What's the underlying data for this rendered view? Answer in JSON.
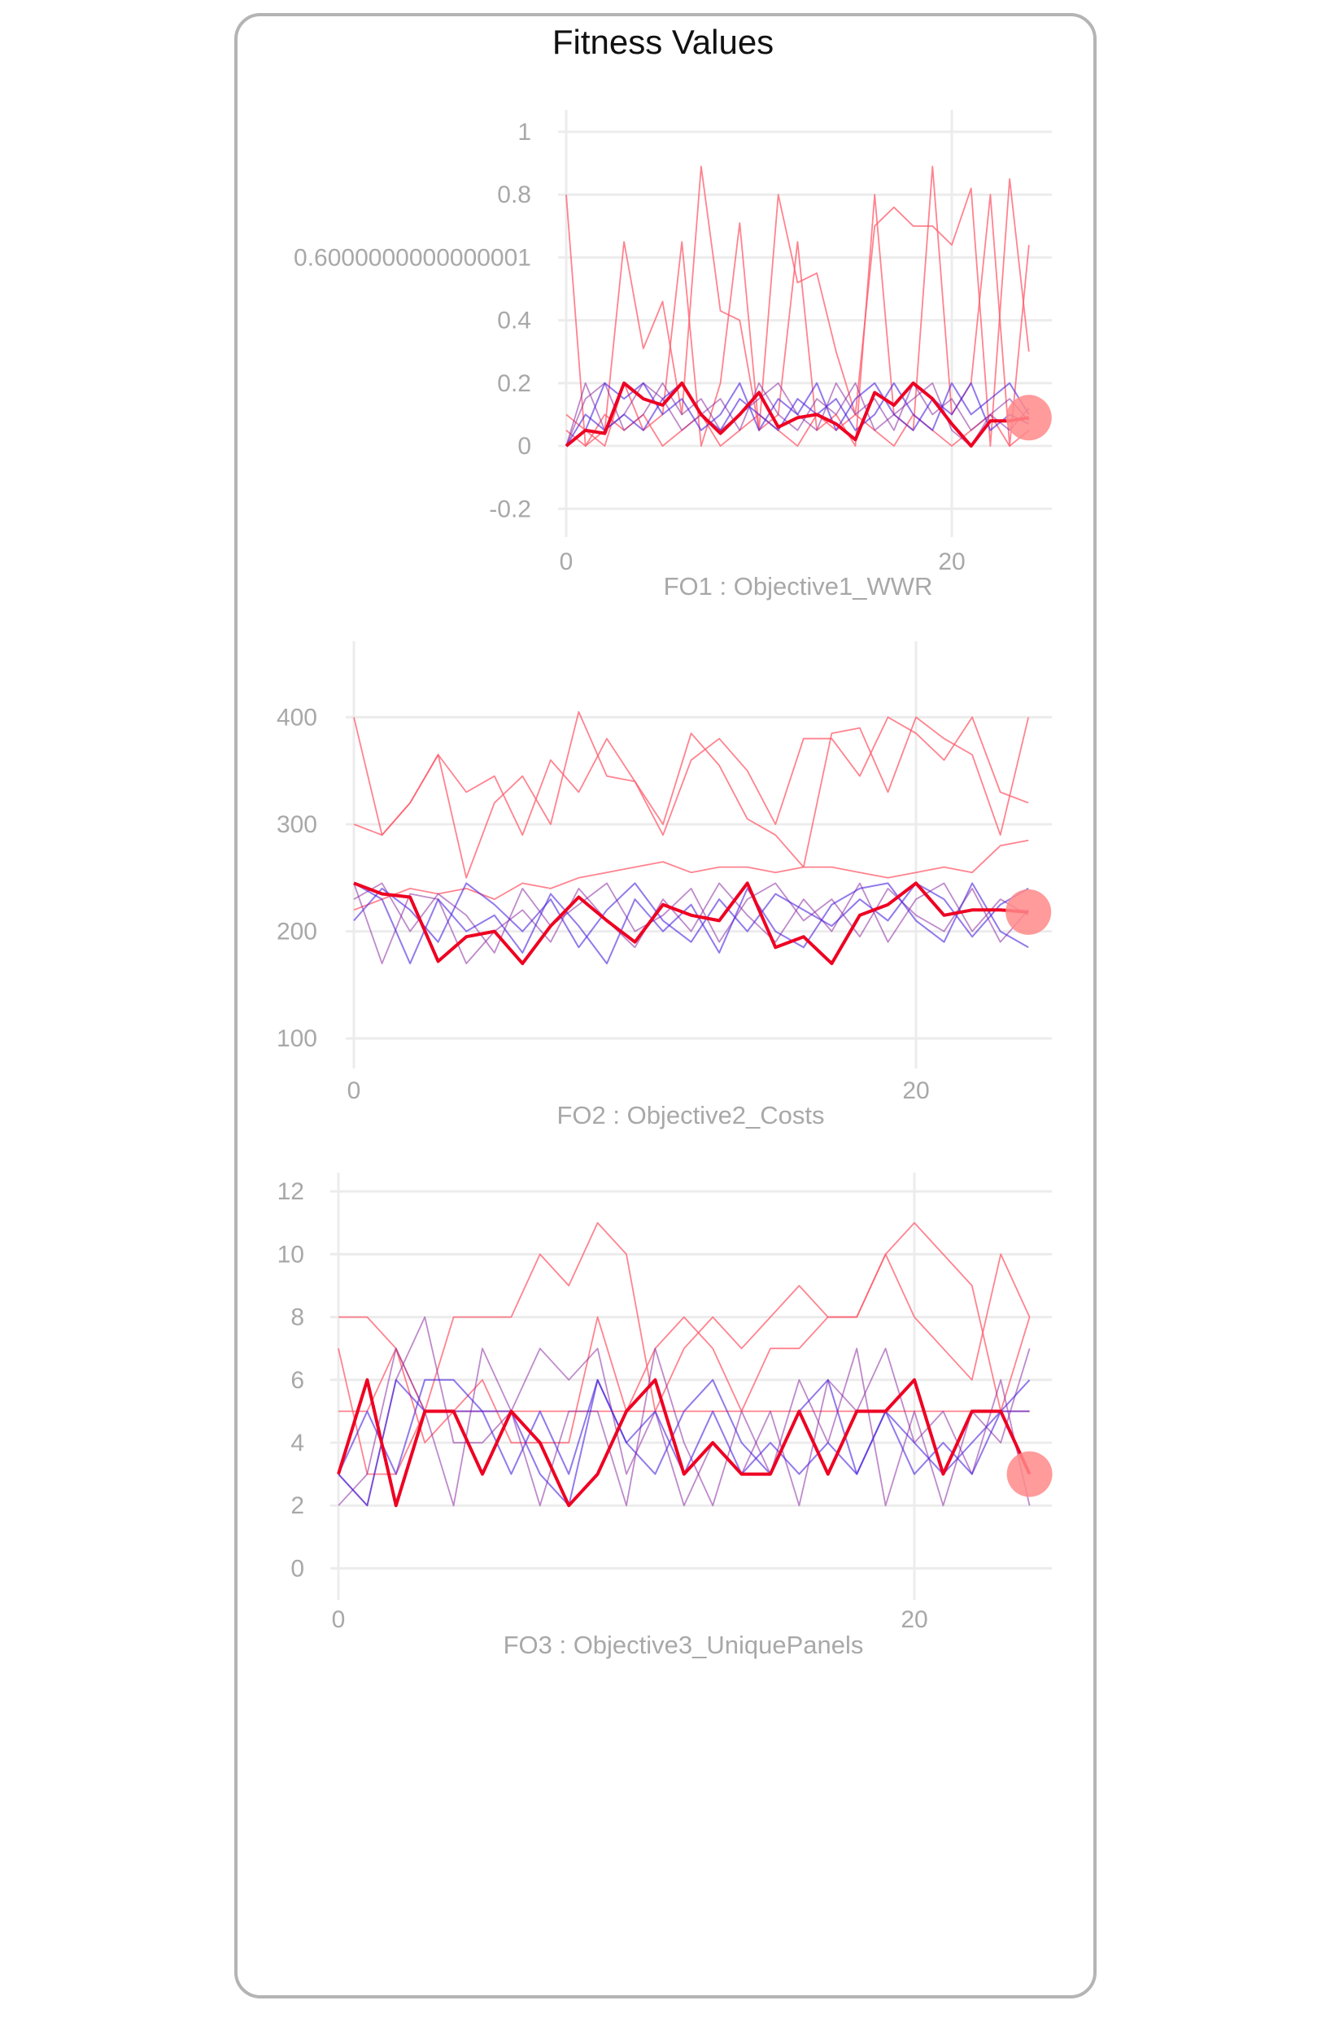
{
  "title": "Fitness Values",
  "colors": {
    "highlight": "#ee0022",
    "red_thin": "#ff5a6a",
    "purple": "#8a2aa0",
    "blue": "#4a22dd",
    "marker": "#ff8a8a",
    "grid": "#ececec",
    "tick_text": "#a8a8a8"
  },
  "chart_data": [
    {
      "type": "line",
      "xlabel": "FO1 : Objective1_WWR",
      "x_ticks": [
        "0",
        "20"
      ],
      "y_ticks": [
        "-0.2",
        "0",
        "0.2",
        "0.4",
        "0.6000000000000001",
        "0.8",
        "1"
      ],
      "y_tick_values": [
        -0.2,
        0,
        0.2,
        0.4,
        0.6,
        0.8,
        1
      ],
      "xlim": [
        0,
        24
      ],
      "ylim": [
        -0.29,
        1.07
      ],
      "grid": true,
      "series": [
        {
          "kind": "red",
          "values": [
            0.8,
            0,
            0.05,
            0.65,
            0.31,
            0.46,
            0.1,
            0.89,
            0.43,
            0.4,
            0.05,
            0.8,
            0.52,
            0.55,
            0.3,
            0.1,
            0.7,
            0.76,
            0.7,
            0.7,
            0.64,
            0.82,
            0,
            0.85,
            0.3
          ]
        },
        {
          "kind": "red",
          "values": [
            0.1,
            0.05,
            0,
            0.2,
            0.05,
            0.1,
            0.65,
            0,
            0.2,
            0.71,
            0.05,
            0.1,
            0.65,
            0.05,
            0.1,
            0,
            0.8,
            0.1,
            0.05,
            0.89,
            0.1,
            0.2,
            0.8,
            0,
            0.64
          ]
        },
        {
          "kind": "red",
          "values": [
            0.05,
            0,
            0.1,
            0.05,
            0.1,
            0,
            0.05,
            0.1,
            0,
            0.05,
            0.1,
            0.05,
            0,
            0.1,
            0.05,
            0.1,
            0.05,
            0,
            0.1,
            0.05,
            0,
            0.05,
            0.1,
            0,
            0.05
          ]
        },
        {
          "kind": "purple",
          "values": [
            0,
            0.2,
            0.05,
            0.1,
            0.2,
            0.15,
            0.05,
            0.1,
            0.15,
            0.05,
            0.2,
            0.1,
            0.05,
            0.15,
            0.1,
            0.2,
            0.05,
            0.1,
            0.15,
            0.2,
            0.05,
            0,
            0.1,
            0.15,
            0.08
          ]
        },
        {
          "kind": "purple",
          "values": [
            0,
            0.15,
            0.2,
            0.05,
            0.1,
            0.2,
            0.1,
            0.15,
            0.05,
            0.1,
            0.15,
            0.2,
            0.1,
            0.05,
            0.2,
            0.1,
            0.15,
            0.05,
            0.2,
            0.1,
            0.15,
            0.05,
            0.1,
            0.05,
            0.12
          ]
        },
        {
          "kind": "blue",
          "values": [
            0,
            0.05,
            0.2,
            0.15,
            0.2,
            0.1,
            0.15,
            0.05,
            0.1,
            0.2,
            0.05,
            0.15,
            0.1,
            0.2,
            0.05,
            0.15,
            0.2,
            0.1,
            0.05,
            0.15,
            0.1,
            0.2,
            0.05,
            0.1,
            0.07
          ]
        },
        {
          "kind": "blue",
          "values": [
            0,
            0.1,
            0.05,
            0.1,
            0.05,
            0.15,
            0.2,
            0.1,
            0.05,
            0.15,
            0.1,
            0.05,
            0.15,
            0.1,
            0.15,
            0.05,
            0.1,
            0.2,
            0.1,
            0.05,
            0.2,
            0.1,
            0.15,
            0.2,
            0.1
          ]
        },
        {
          "kind": "highlight",
          "values": [
            0,
            0.05,
            0.04,
            0.2,
            0.15,
            0.13,
            0.2,
            0.1,
            0.04,
            0.1,
            0.17,
            0.06,
            0.09,
            0.1,
            0.07,
            0.02,
            0.17,
            0.13,
            0.2,
            0.15,
            0.07,
            0,
            0.08,
            0.08,
            0.09
          ]
        }
      ]
    },
    {
      "type": "line",
      "xlabel": "FO2 : Objective2_Costs",
      "x_ticks": [
        "0",
        "20"
      ],
      "y_ticks": [
        "100",
        "200",
        "300",
        "400"
      ],
      "y_tick_values": [
        100,
        200,
        300,
        400
      ],
      "xlim": [
        0,
        24
      ],
      "ylim": [
        72,
        471
      ],
      "grid": true,
      "series": [
        {
          "kind": "red",
          "values": [
            400,
            290,
            320,
            365,
            250,
            320,
            345,
            300,
            405,
            345,
            340,
            300,
            385,
            355,
            305,
            290,
            260,
            385,
            390,
            330,
            400,
            380,
            365,
            290,
            400
          ]
        },
        {
          "kind": "red",
          "values": [
            300,
            290,
            320,
            365,
            330,
            345,
            290,
            360,
            330,
            380,
            340,
            290,
            360,
            380,
            350,
            300,
            380,
            380,
            345,
            400,
            385,
            360,
            400,
            330,
            320
          ]
        },
        {
          "kind": "red",
          "values": [
            220,
            230,
            240,
            235,
            240,
            230,
            245,
            240,
            250,
            255,
            260,
            265,
            255,
            260,
            260,
            255,
            260,
            260,
            255,
            250,
            255,
            260,
            255,
            280,
            285
          ]
        },
        {
          "kind": "purple",
          "values": [
            245,
            170,
            235,
            230,
            170,
            200,
            220,
            190,
            240,
            210,
            185,
            230,
            200,
            245,
            215,
            190,
            230,
            200,
            245,
            190,
            230,
            245,
            200,
            230,
            215
          ]
        },
        {
          "kind": "purple",
          "values": [
            230,
            245,
            200,
            235,
            215,
            180,
            240,
            205,
            225,
            245,
            200,
            215,
            240,
            190,
            230,
            245,
            210,
            230,
            195,
            240,
            215,
            200,
            240,
            190,
            220
          ]
        },
        {
          "kind": "blue",
          "values": [
            245,
            230,
            170,
            230,
            200,
            215,
            180,
            235,
            205,
            170,
            230,
            200,
            225,
            180,
            240,
            200,
            185,
            225,
            240,
            245,
            210,
            190,
            245,
            200,
            185
          ]
        },
        {
          "kind": "blue",
          "values": [
            210,
            240,
            220,
            190,
            245,
            225,
            200,
            230,
            185,
            220,
            245,
            210,
            190,
            230,
            200,
            235,
            220,
            205,
            230,
            210,
            245,
            230,
            195,
            225,
            240
          ]
        },
        {
          "kind": "highlight",
          "values": [
            245,
            235,
            232,
            172,
            195,
            200,
            170,
            205,
            232,
            210,
            190,
            225,
            215,
            210,
            245,
            185,
            195,
            170,
            215,
            225,
            245,
            215,
            220,
            220,
            218
          ]
        }
      ]
    },
    {
      "type": "line",
      "xlabel": "FO3 : Objective3_UniquePanels",
      "x_ticks": [
        "0",
        "20"
      ],
      "y_ticks": [
        "0",
        "2",
        "4",
        "6",
        "8",
        "10",
        "12"
      ],
      "y_tick_values": [
        0,
        2,
        4,
        6,
        8,
        10,
        12
      ],
      "xlim": [
        0,
        24
      ],
      "ylim": [
        -1,
        12.6
      ],
      "grid": true,
      "series": [
        {
          "kind": "red",
          "values": [
            8,
            8,
            7,
            5,
            8,
            8,
            8,
            10,
            9,
            11,
            10,
            5,
            7,
            8,
            7,
            8,
            9,
            8,
            8,
            10,
            8,
            7,
            6,
            10,
            8
          ]
        },
        {
          "kind": "red",
          "values": [
            7,
            3,
            3,
            5,
            5,
            5,
            5,
            5,
            5,
            5,
            5,
            5,
            5,
            5,
            5,
            5,
            5,
            5,
            5,
            5,
            5,
            5,
            5,
            5,
            5
          ]
        },
        {
          "kind": "red",
          "values": [
            5,
            5,
            7,
            4,
            5,
            6,
            4,
            4,
            4,
            8,
            5,
            7,
            8,
            7,
            5,
            7,
            7,
            8,
            8,
            10,
            11,
            10,
            9,
            5,
            8
          ]
        },
        {
          "kind": "purple",
          "values": [
            2,
            3,
            7,
            5,
            2,
            7,
            5,
            7,
            6,
            7,
            3,
            5,
            2,
            4,
            3,
            5,
            2,
            6,
            5,
            7,
            4,
            5,
            3,
            6,
            2
          ]
        },
        {
          "kind": "purple",
          "values": [
            3,
            2,
            6,
            8,
            4,
            4,
            5,
            2,
            5,
            5,
            2,
            7,
            4,
            2,
            5,
            3,
            6,
            4,
            7,
            2,
            5,
            2,
            5,
            4,
            7
          ]
        },
        {
          "kind": "blue",
          "values": [
            3,
            5,
            3,
            6,
            6,
            5,
            3,
            5,
            3,
            6,
            4,
            3,
            5,
            6,
            4,
            3,
            5,
            6,
            3,
            5,
            3,
            4,
            3,
            5,
            6
          ]
        },
        {
          "kind": "blue",
          "values": [
            3,
            2,
            6,
            5,
            5,
            5,
            5,
            3,
            2,
            6,
            4,
            5,
            3,
            5,
            3,
            4,
            3,
            4,
            3,
            5,
            4,
            3,
            4,
            5,
            5
          ]
        },
        {
          "kind": "highlight",
          "values": [
            3,
            6,
            2,
            5,
            5,
            3,
            5,
            4,
            2,
            3,
            5,
            6,
            3,
            4,
            3,
            3,
            5,
            3,
            5,
            5,
            6,
            3,
            5,
            5,
            3
          ]
        }
      ]
    }
  ]
}
